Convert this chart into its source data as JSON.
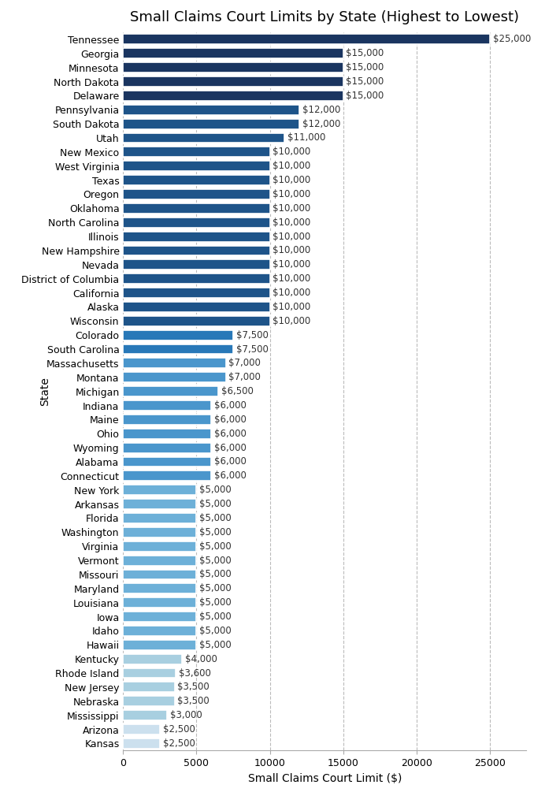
{
  "title": "Small Claims Court Limits by State (Highest to Lowest)",
  "xlabel": "Small Claims Court Limit ($)",
  "ylabel": "State",
  "states": [
    "Tennessee",
    "Georgia",
    "Minnesota",
    "North Dakota",
    "Delaware",
    "Pennsylvania",
    "South Dakota",
    "Utah",
    "New Mexico",
    "West Virginia",
    "Texas",
    "Oregon",
    "Oklahoma",
    "North Carolina",
    "Illinois",
    "New Hampshire",
    "Nevada",
    "District of Columbia",
    "California",
    "Alaska",
    "Wisconsin",
    "Colorado",
    "South Carolina",
    "Massachusetts",
    "Montana",
    "Michigan",
    "Indiana",
    "Maine",
    "Ohio",
    "Wyoming",
    "Alabama",
    "Connecticut",
    "New York",
    "Arkansas",
    "Florida",
    "Washington",
    "Virginia",
    "Vermont",
    "Missouri",
    "Maryland",
    "Louisiana",
    "Iowa",
    "Idaho",
    "Hawaii",
    "Kentucky",
    "Rhode Island",
    "New Jersey",
    "Nebraska",
    "Mississippi",
    "Arizona",
    "Kansas"
  ],
  "values": [
    25000,
    15000,
    15000,
    15000,
    15000,
    12000,
    12000,
    11000,
    10000,
    10000,
    10000,
    10000,
    10000,
    10000,
    10000,
    10000,
    10000,
    10000,
    10000,
    10000,
    10000,
    7500,
    7500,
    7000,
    7000,
    6500,
    6000,
    6000,
    6000,
    6000,
    6000,
    6000,
    5000,
    5000,
    5000,
    5000,
    5000,
    5000,
    5000,
    5000,
    5000,
    5000,
    5000,
    5000,
    4000,
    3600,
    3500,
    3500,
    3000,
    2500,
    2500
  ],
  "color_thresholds": [
    {
      "min": 15000,
      "color": "#1a3560"
    },
    {
      "min": 10000,
      "color": "#1e5489"
    },
    {
      "min": 7500,
      "color": "#2878b8"
    },
    {
      "min": 6000,
      "color": "#4a96cc"
    },
    {
      "min": 5000,
      "color": "#6db0d8"
    },
    {
      "min": 3000,
      "color": "#a8cfe0"
    },
    {
      "min": 0,
      "color": "#cce0ee"
    }
  ],
  "bg_color": "#ffffff",
  "plot_bg_color": "#ffffff",
  "bar_height": 0.72,
  "xlim": [
    0,
    27500
  ],
  "grid_color": "#bbbbbb",
  "title_fontsize": 13,
  "axis_label_fontsize": 10,
  "tick_fontsize": 9,
  "annotation_fontsize": 8.5
}
